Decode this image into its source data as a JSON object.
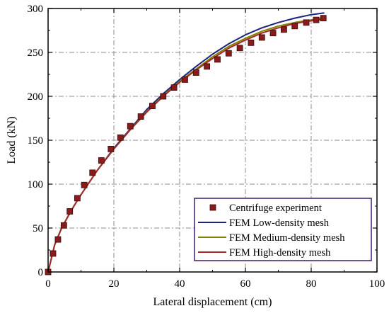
{
  "chart_data": {
    "type": "line",
    "xlabel": "Lateral displacement (cm)",
    "ylabel": "Load (kN)",
    "xlim": [
      0,
      100
    ],
    "ylim": [
      0,
      300
    ],
    "xticks": [
      0,
      20,
      40,
      60,
      80,
      100
    ],
    "yticks": [
      0,
      50,
      100,
      150,
      200,
      250,
      300
    ],
    "x_tick_labels": [
      "0",
      "20",
      "40",
      "60",
      "80",
      "100"
    ],
    "y_tick_labels": [
      "0",
      "50",
      "100",
      "150",
      "200",
      "250",
      "300"
    ],
    "grid": true,
    "legend_position": "bottom-right",
    "series": [
      {
        "name": "Centrifuge experiment",
        "kind": "scatter",
        "color": "#8b1a1a",
        "x": [
          0,
          1.5,
          3,
          4.8,
          6.6,
          8.9,
          11,
          13.5,
          16.2,
          19.1,
          22,
          25,
          28.2,
          31.7,
          35,
          38.3,
          41.6,
          45,
          48.3,
          51.5,
          54.9,
          58.3,
          61.7,
          65,
          68.4,
          71.7,
          75,
          78.5,
          81.5,
          83.7
        ],
        "y": [
          0,
          21,
          37,
          53,
          69,
          84,
          99,
          113,
          127,
          140,
          153,
          166,
          177,
          189,
          200,
          210,
          219,
          227,
          234,
          242,
          249,
          255,
          261,
          267,
          272,
          276,
          280,
          284,
          287,
          289
        ]
      },
      {
        "name": "FEM Low-density mesh",
        "kind": "line",
        "color": "#1a237e",
        "x": [
          0,
          2,
          4,
          6,
          8,
          10,
          15,
          20,
          25,
          30,
          35,
          40,
          45,
          50,
          55,
          60,
          65,
          70,
          75,
          80,
          84
        ],
        "y": [
          0,
          31,
          49,
          63,
          76,
          88,
          116,
          141,
          163,
          185,
          203,
          219,
          234,
          248,
          260,
          270,
          278,
          284,
          289,
          293,
          295
        ]
      },
      {
        "name": "FEM Medium-density mesh",
        "kind": "line",
        "color": "#808000",
        "x": [
          0,
          2,
          4,
          6,
          8,
          10,
          15,
          20,
          25,
          30,
          35,
          40,
          45,
          50,
          55,
          60,
          65,
          70,
          75,
          80,
          84
        ],
        "y": [
          0,
          31,
          49,
          63,
          76,
          88,
          116,
          140,
          162,
          183,
          201,
          217,
          231,
          245,
          257,
          266,
          274,
          280,
          284,
          287,
          290
        ]
      },
      {
        "name": "FEM High-density mesh",
        "kind": "line",
        "color": "#a52a2a",
        "x": [
          0,
          2,
          4,
          6,
          8,
          10,
          15,
          20,
          25,
          30,
          35,
          40,
          45,
          50,
          55,
          60,
          65,
          70,
          75,
          80,
          84
        ],
        "y": [
          0,
          31,
          49,
          63,
          76,
          88,
          116,
          140,
          162,
          182,
          200,
          216,
          230,
          243,
          255,
          264,
          272,
          278,
          283,
          286,
          288
        ]
      }
    ]
  }
}
